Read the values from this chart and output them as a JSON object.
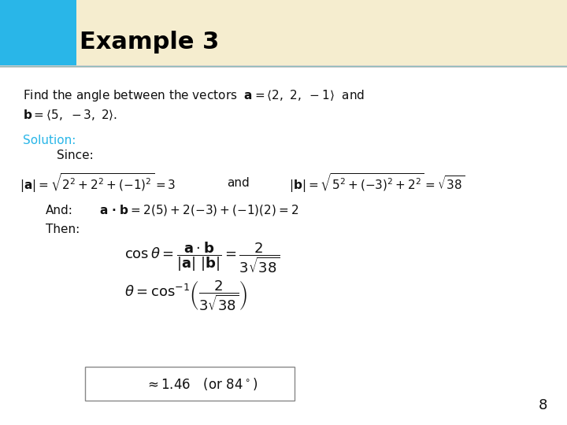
{
  "title": "Example 3",
  "title_color": "#000000",
  "title_bg_color": "#F5EDCF",
  "title_square_color": "#29B6E8",
  "header_line_color": "#AAAAAA",
  "body_bg_color": "#FFFFFF",
  "solution_color": "#29B6E8",
  "page_number": "8",
  "title_fontsize": 22,
  "body_fontsize": 11,
  "math_fontsize": 11
}
